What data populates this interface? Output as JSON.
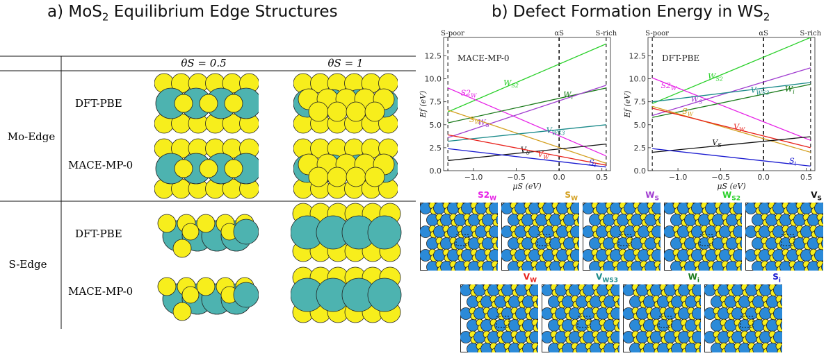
{
  "panel_a": {
    "title_prefix": "a) MoS",
    "title_sub": "2",
    "title_suffix": " Equilibrium Edge Structures",
    "col_headers": [
      "θS = 0.5",
      "θS = 1"
    ],
    "groups": [
      {
        "label": "Mo-Edge",
        "rows": [
          "DFT-PBE",
          "MACE-MP-0"
        ]
      },
      {
        "label": "S-Edge",
        "rows": [
          "DFT-PBE",
          "MACE-MP-0"
        ]
      }
    ],
    "colors": {
      "metal": "#4db3b0",
      "sulfur": "#f7ee1c"
    }
  },
  "panel_b": {
    "title_prefix": "b) Defect Formation Energy in WS",
    "title_sub": "2",
    "top_marks": [
      "S-poor",
      "αS",
      "S-rich"
    ],
    "xlabel": "μS (eV)",
    "ylabel": "Ef (eV)",
    "row1_labels": [
      {
        "main": "S2",
        "sub": "W",
        "color": "#e620e6"
      },
      {
        "main": "S",
        "sub": "W",
        "color": "#d4a020"
      },
      {
        "main": "W",
        "sub": "S",
        "color": "#a03cd0"
      },
      {
        "main": "W",
        "sub": "S2",
        "color": "#2ad02a"
      },
      {
        "main": "V",
        "sub": "S",
        "color": "#111111"
      }
    ],
    "row2_labels": [
      {
        "main": "V",
        "sub": "W",
        "color": "#e8201a"
      },
      {
        "main": "V",
        "sub": "WS3",
        "color": "#1a8a8a"
      },
      {
        "main": "W",
        "sub": "i",
        "color": "#1a7a1a"
      },
      {
        "main": "S",
        "sub": "i",
        "color": "#1a1ad0"
      }
    ],
    "colors": {
      "W": "#2b8ad8",
      "S": "#f7ee1c"
    }
  },
  "chart_data": [
    {
      "type": "line",
      "title": "MACE-MP-0",
      "xlabel": "μS (eV)",
      "ylabel": "Ef (eV)",
      "xlim": [
        -1.35,
        0.6
      ],
      "ylim": [
        0,
        14.5
      ],
      "xticks": [
        "−1.0",
        "−0.5",
        "0.0",
        "0.5"
      ],
      "yticks": [
        "0.0",
        "2.5",
        "5.0",
        "7.5",
        "10.0",
        "12.5"
      ],
      "vlines": [
        -1.3,
        0,
        0.55
      ],
      "series": [
        {
          "name": "WS2",
          "main": "W",
          "sub": "S2",
          "color": "#2ad02a",
          "x": [
            -1.3,
            0.55
          ],
          "y": [
            6.4,
            13.8
          ],
          "lx": -0.65,
          "ly": 9.3
        },
        {
          "name": "S2W",
          "main": "S2",
          "sub": "W",
          "color": "#e620e6",
          "x": [
            -1.3,
            0.55
          ],
          "y": [
            9.0,
            1.6
          ],
          "lx": -1.15,
          "ly": 8.2
        },
        {
          "name": "Wi",
          "main": "W",
          "sub": "i",
          "color": "#1a7a1a",
          "x": [
            -1.3,
            0.55
          ],
          "y": [
            5.2,
            9.0
          ],
          "lx": 0.05,
          "ly": 8.0
        },
        {
          "name": "WS",
          "main": "W",
          "sub": "S",
          "color": "#a03cd0",
          "x": [
            -1.3,
            0.55
          ],
          "y": [
            3.6,
            9.3
          ],
          "lx": -0.95,
          "ly": 5.0
        },
        {
          "name": "SW",
          "main": "S",
          "sub": "W",
          "color": "#d4a020",
          "x": [
            -1.3,
            0.55
          ],
          "y": [
            6.6,
            0.8
          ],
          "lx": -1.05,
          "ly": 5.3
        },
        {
          "name": "VWS3",
          "main": "V",
          "sub": "WS3",
          "color": "#1a8a8a",
          "x": [
            -1.3,
            0.55
          ],
          "y": [
            3.2,
            5.0
          ],
          "lx": -0.15,
          "ly": 4.1
        },
        {
          "name": "VS",
          "main": "V",
          "sub": "S",
          "color": "#111111",
          "x": [
            -1.3,
            0.55
          ],
          "y": [
            1.1,
            2.9
          ],
          "lx": -0.45,
          "ly": 2.0
        },
        {
          "name": "VW",
          "main": "V",
          "sub": "W",
          "color": "#e8201a",
          "x": [
            -1.3,
            0.55
          ],
          "y": [
            3.9,
            0.6
          ],
          "lx": -0.25,
          "ly": 1.5
        },
        {
          "name": "Si",
          "main": "S",
          "sub": "i",
          "color": "#1a1ad0",
          "x": [
            -1.3,
            0.55
          ],
          "y": [
            2.4,
            0.4
          ],
          "lx": 0.35,
          "ly": 0.6
        }
      ]
    },
    {
      "type": "line",
      "title": "DFT-PBE",
      "xlabel": "μS (eV)",
      "ylabel": "Ef (eV)",
      "xlim": [
        -1.35,
        0.6
      ],
      "ylim": [
        0,
        14.5
      ],
      "xticks": [
        "−1.0",
        "−0.5",
        "0.0",
        "0.5"
      ],
      "yticks": [
        "0.0",
        "2.5",
        "5.0",
        "7.5",
        "10.0",
        "12.5"
      ],
      "vlines": [
        -1.3,
        0,
        0.55
      ],
      "series": [
        {
          "name": "WS2",
          "main": "W",
          "sub": "S2",
          "color": "#2ad02a",
          "x": [
            -1.3,
            0.55
          ],
          "y": [
            7.3,
            14.5
          ],
          "lx": -0.65,
          "ly": 10.0
        },
        {
          "name": "S2W",
          "main": "S2",
          "sub": "W",
          "color": "#e620e6",
          "x": [
            -1.3,
            0.55
          ],
          "y": [
            10.1,
            3.3
          ],
          "lx": -1.2,
          "ly": 9.0
        },
        {
          "name": "WS",
          "main": "W",
          "sub": "S",
          "color": "#a03cd0",
          "x": [
            -1.3,
            0.55
          ],
          "y": [
            6.0,
            11.2
          ],
          "lx": -0.85,
          "ly": 7.5
        },
        {
          "name": "Wi",
          "main": "W",
          "sub": "i",
          "color": "#1a7a1a",
          "x": [
            -1.3,
            0.55
          ],
          "y": [
            5.8,
            9.4
          ],
          "lx": 0.25,
          "ly": 8.6
        },
        {
          "name": "VWS3",
          "main": "V",
          "sub": "WS3",
          "color": "#1a8a8a",
          "x": [
            -1.3,
            0.55
          ],
          "y": [
            7.5,
            9.6
          ],
          "lx": -0.15,
          "ly": 8.5
        },
        {
          "name": "SW",
          "main": "S",
          "sub": "W",
          "color": "#d4a020",
          "x": [
            -1.3,
            0.55
          ],
          "y": [
            7.0,
            2.0
          ],
          "lx": -0.95,
          "ly": 6.2
        },
        {
          "name": "VW",
          "main": "V",
          "sub": "W",
          "color": "#e8201a",
          "x": [
            -1.3,
            0.55
          ],
          "y": [
            6.8,
            2.5
          ],
          "lx": -0.35,
          "ly": 4.5
        },
        {
          "name": "VS",
          "main": "V",
          "sub": "S",
          "color": "#111111",
          "x": [
            -1.3,
            0.55
          ],
          "y": [
            2.0,
            3.7
          ],
          "lx": -0.6,
          "ly": 2.8
        },
        {
          "name": "Si",
          "main": "S",
          "sub": "i",
          "color": "#1a1ad0",
          "x": [
            -1.3,
            0.55
          ],
          "y": [
            2.4,
            0.5
          ],
          "lx": 0.3,
          "ly": 0.8
        }
      ]
    }
  ]
}
